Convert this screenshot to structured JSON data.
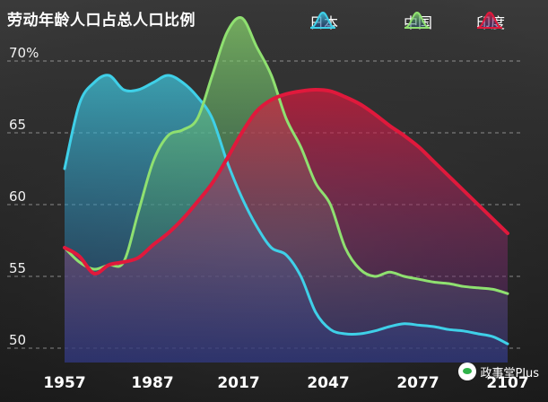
{
  "chart_data": {
    "type": "area",
    "title": "劳动年龄人口占总人口比例",
    "x_ticks": [
      "1957",
      "1987",
      "2017",
      "2047",
      "2077",
      "2107"
    ],
    "y_ticks": [
      "50",
      "55",
      "60",
      "65",
      "70%"
    ],
    "ylim": [
      49,
      73
    ],
    "xlim": [
      1950,
      2100
    ],
    "grid": "horizontal-dashed",
    "legend": "top-right",
    "series": [
      {
        "name": "日本",
        "color": "#3fd0e8",
        "x": [
          1950,
          1955,
          1960,
          1965,
          1970,
          1975,
          1980,
          1985,
          1990,
          1995,
          2000,
          2005,
          2010,
          2015,
          2020,
          2025,
          2030,
          2035,
          2040,
          2045,
          2050,
          2055,
          2060,
          2065,
          2070,
          2075,
          2080,
          2085,
          2090,
          2095,
          2100
        ],
        "y": [
          62.5,
          67,
          68.5,
          69,
          68,
          68,
          68.5,
          69,
          68.5,
          67.5,
          66,
          63,
          60.5,
          58.5,
          57,
          56.5,
          55,
          52.5,
          51.3,
          51,
          51,
          51.2,
          51.5,
          51.7,
          51.6,
          51.5,
          51.3,
          51.2,
          51,
          50.8,
          50.3
        ]
      },
      {
        "name": "中国",
        "color": "#8fe070",
        "x": [
          1950,
          1955,
          1960,
          1965,
          1970,
          1975,
          1980,
          1985,
          1990,
          1995,
          2000,
          2005,
          2010,
          2015,
          2020,
          2025,
          2030,
          2035,
          2040,
          2045,
          2050,
          2055,
          2060,
          2065,
          2070,
          2075,
          2080,
          2085,
          2090,
          2095,
          2100
        ],
        "y": [
          57,
          56,
          55.5,
          55.8,
          56,
          59.5,
          63,
          64.8,
          65.2,
          66,
          69,
          72,
          73,
          71,
          69,
          66,
          64,
          61.5,
          60,
          57,
          55.5,
          55,
          55.3,
          55,
          54.8,
          54.6,
          54.5,
          54.3,
          54.2,
          54.1,
          53.8
        ]
      },
      {
        "name": "印度",
        "color": "#e0193c",
        "x": [
          1950,
          1955,
          1960,
          1965,
          1970,
          1975,
          1980,
          1985,
          1990,
          1995,
          2000,
          2005,
          2010,
          2015,
          2020,
          2025,
          2030,
          2035,
          2040,
          2045,
          2050,
          2055,
          2060,
          2065,
          2070,
          2075,
          2080,
          2085,
          2090,
          2095,
          2100
        ],
        "y": [
          57,
          56.4,
          55.2,
          55.8,
          56,
          56.3,
          57.2,
          58,
          59,
          60.2,
          61.5,
          63.2,
          65,
          66.5,
          67.3,
          67.7,
          67.9,
          68,
          67.9,
          67.5,
          67,
          66.3,
          65.5,
          64.8,
          64,
          63,
          62,
          61,
          60,
          59,
          58
        ]
      }
    ]
  },
  "watermark": {
    "text": "政事堂Plus",
    "icon": "wechat-icon"
  }
}
